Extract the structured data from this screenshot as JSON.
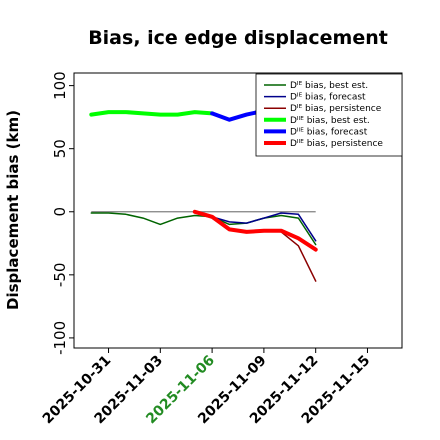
{
  "chart_data": {
    "type": "line",
    "title": "Bias, ice edge displacement",
    "xlabel": "",
    "ylabel": "Displacement bias (km)",
    "x_dates": [
      "2025-10-30",
      "2025-10-31",
      "2025-11-01",
      "2025-11-02",
      "2025-11-03",
      "2025-11-04",
      "2025-11-05",
      "2025-11-06",
      "2025-11-07",
      "2025-11-08",
      "2025-11-09",
      "2025-11-10",
      "2025-11-11",
      "2025-11-12"
    ],
    "xlim": [
      "2025-10-29",
      "2025-11-17"
    ],
    "x_ticks": [
      "2025-10-31",
      "2025-11-03",
      "2025-11-06",
      "2025-11-09",
      "2025-11-12",
      "2025-11-15"
    ],
    "highlight_tick": "2025-11-06",
    "highlight_color": "#228B22",
    "ylim": [
      -108,
      110
    ],
    "y_ticks": [
      -100,
      -50,
      0,
      50,
      100
    ],
    "zero_line": true,
    "legend_position": "upper right",
    "series": [
      {
        "name": "Dᴵᴱ bias, best est.",
        "color": "#006400",
        "width": 1.5,
        "x": [
          "2025-10-30",
          "2025-10-31",
          "2025-11-01",
          "2025-11-02",
          "2025-11-03",
          "2025-11-04",
          "2025-11-05",
          "2025-11-06",
          "2025-11-07",
          "2025-11-08",
          "2025-11-09",
          "2025-11-10",
          "2025-11-11",
          "2025-11-12"
        ],
        "y": [
          -1,
          -1,
          -2,
          -5,
          -10,
          -5,
          -3,
          -4,
          -10,
          -9,
          -5,
          -3,
          -5,
          -26
        ]
      },
      {
        "name": "Dᴵᴱ bias, forecast",
        "color": "#00008B",
        "width": 1.5,
        "x": [
          "2025-11-06",
          "2025-11-07",
          "2025-11-08",
          "2025-11-09",
          "2025-11-10",
          "2025-11-11",
          "2025-11-12"
        ],
        "y": [
          -4,
          -8,
          -9,
          -5,
          -1,
          -2,
          -23
        ]
      },
      {
        "name": "Dᴵᴱ bias, persistence",
        "color": "#8B0000",
        "width": 1.5,
        "x": [
          "2025-11-05",
          "2025-11-06",
          "2025-11-07",
          "2025-11-08",
          "2025-11-09",
          "2025-11-10",
          "2025-11-11",
          "2025-11-12"
        ],
        "y": [
          0,
          -5,
          -14,
          -16,
          -15,
          -16,
          -27,
          -55
        ]
      },
      {
        "name": "Dᴵᴵᴱ bias, best est.",
        "color": "#00FF00",
        "width": 4,
        "x": [
          "2025-10-30",
          "2025-10-31",
          "2025-11-01",
          "2025-11-02",
          "2025-11-03",
          "2025-11-04",
          "2025-11-05",
          "2025-11-06"
        ],
        "y": [
          77,
          79,
          79,
          78,
          77,
          77,
          79,
          78
        ]
      },
      {
        "name": "Dᴵᴵᴱ bias, forecast",
        "color": "#0000FF",
        "width": 4,
        "x": [
          "2025-11-06",
          "2025-11-07",
          "2025-11-08",
          "2025-11-09",
          "2025-11-10",
          "2025-11-11",
          "2025-11-12"
        ],
        "y": [
          78,
          73,
          77,
          80,
          82,
          83,
          83
        ]
      },
      {
        "name": "Dᴵᴵᴱ bias, persistence",
        "color": "#FF0000",
        "width": 4,
        "x": [
          "2025-11-05",
          "2025-11-06",
          "2025-11-07",
          "2025-11-08",
          "2025-11-09",
          "2025-11-10",
          "2025-11-11",
          "2025-11-12"
        ],
        "y": [
          0,
          -4,
          -14,
          -16,
          -15,
          -15,
          -21,
          -30
        ]
      }
    ]
  }
}
